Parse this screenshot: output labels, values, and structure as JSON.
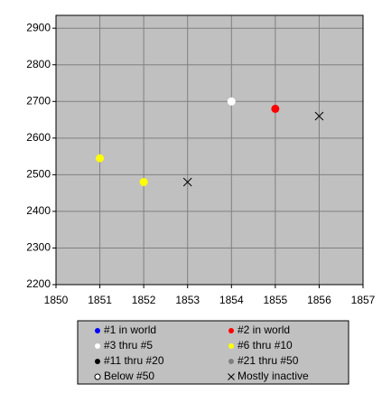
{
  "chart_data": {
    "type": "scatter",
    "xlim": [
      1850,
      1857
    ],
    "xticks": [
      1850,
      1851,
      1852,
      1853,
      1854,
      1855,
      1856,
      1857
    ],
    "ylim": [
      2200,
      2935
    ],
    "yticks": [
      2200,
      2300,
      2400,
      2500,
      2600,
      2700,
      2800,
      2900
    ],
    "grid": true,
    "legend": "bottom",
    "series": [
      {
        "name": "#1 in world",
        "color": "#0000ff",
        "marker": "circle",
        "x": [],
        "values": []
      },
      {
        "name": "#2 in world",
        "color": "#ff0000",
        "marker": "circle",
        "x": [
          1855
        ],
        "values": [
          2680
        ]
      },
      {
        "name": "#3 thru #5",
        "color": "#ffffff",
        "marker": "circle",
        "x": [
          1854
        ],
        "values": [
          2700
        ]
      },
      {
        "name": "#6 thru #10",
        "color": "#ffff00",
        "marker": "circle",
        "x": [
          1851,
          1852
        ],
        "values": [
          2545,
          2480
        ]
      },
      {
        "name": "#11 thru #20",
        "color": "#000000",
        "marker": "circle",
        "x": [],
        "values": []
      },
      {
        "name": "#21 thru #50",
        "color": "#808080",
        "marker": "circle",
        "x": [],
        "values": []
      },
      {
        "name": "Below #50",
        "color": "#ffffff",
        "marker": "open-circle",
        "x": [],
        "values": []
      },
      {
        "name": "Mostly inactive",
        "color": "#000000",
        "marker": "x",
        "x": [
          1853,
          1856
        ],
        "values": [
          2480,
          2660
        ]
      }
    ]
  }
}
